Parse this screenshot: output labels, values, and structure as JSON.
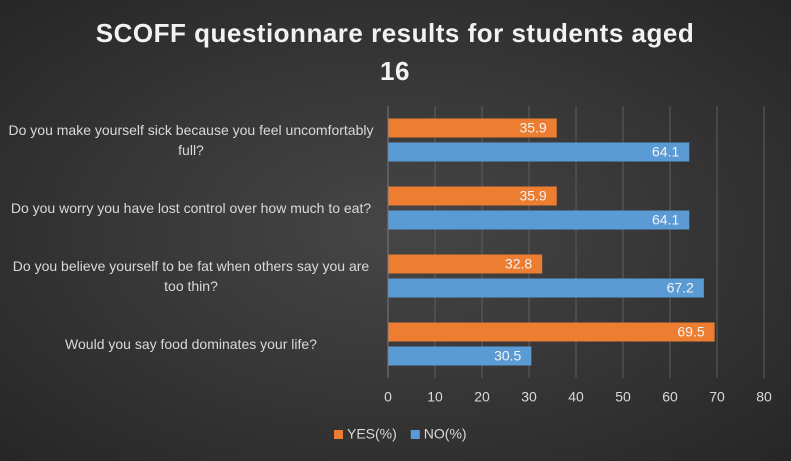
{
  "chart_data": {
    "type": "bar",
    "orientation": "horizontal",
    "title": "SCOFF questionnare results for students aged 16",
    "categories": [
      "Do you make yourself sick because you feel uncomfortably full?",
      "Do you worry you have lost control over how much to eat?",
      "Do you believe yourself to be fat when others say you are too thin?",
      "Would you say food dominates your life?"
    ],
    "series": [
      {
        "name": "YES(%)",
        "color": "#ed7d31",
        "values": [
          35.9,
          35.9,
          32.8,
          69.5
        ]
      },
      {
        "name": "NO(%)",
        "color": "#5b9bd5",
        "values": [
          64.1,
          64.1,
          67.2,
          30.5
        ]
      }
    ],
    "xlim": [
      0,
      80
    ],
    "xticks": [
      0,
      10,
      20,
      30,
      40,
      50,
      60,
      70,
      80
    ],
    "grid": true,
    "legend": "bottom"
  }
}
